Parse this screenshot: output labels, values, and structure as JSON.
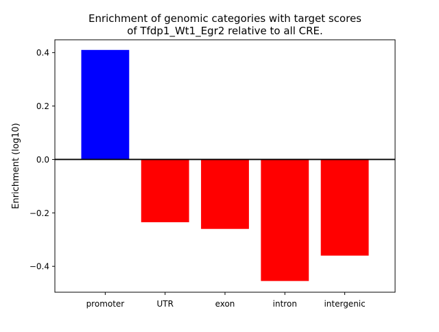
{
  "chart_data": {
    "type": "bar",
    "title_lines": [
      "Enrichment of genomic categories with target scores",
      "of Tfdp1_Wt1_Egr2 relative to all CRE."
    ],
    "xlabel": "",
    "ylabel": "Enrichment (log10)",
    "categories": [
      "promoter",
      "UTR",
      "exon",
      "intron",
      "intergenic"
    ],
    "values": [
      0.41,
      -0.235,
      -0.26,
      -0.455,
      -0.36
    ],
    "bar_colors": [
      "#0000ff",
      "#ff0000",
      "#ff0000",
      "#ff0000",
      "#ff0000"
    ],
    "ylim": [
      -0.497,
      0.448
    ],
    "yticks": [
      0.4,
      0.2,
      0.0,
      -0.2,
      -0.4
    ],
    "ytick_labels": [
      "0.4",
      "0.2",
      "0.0",
      "−0.2",
      "−0.4"
    ],
    "grid": false,
    "zero_line": true
  }
}
